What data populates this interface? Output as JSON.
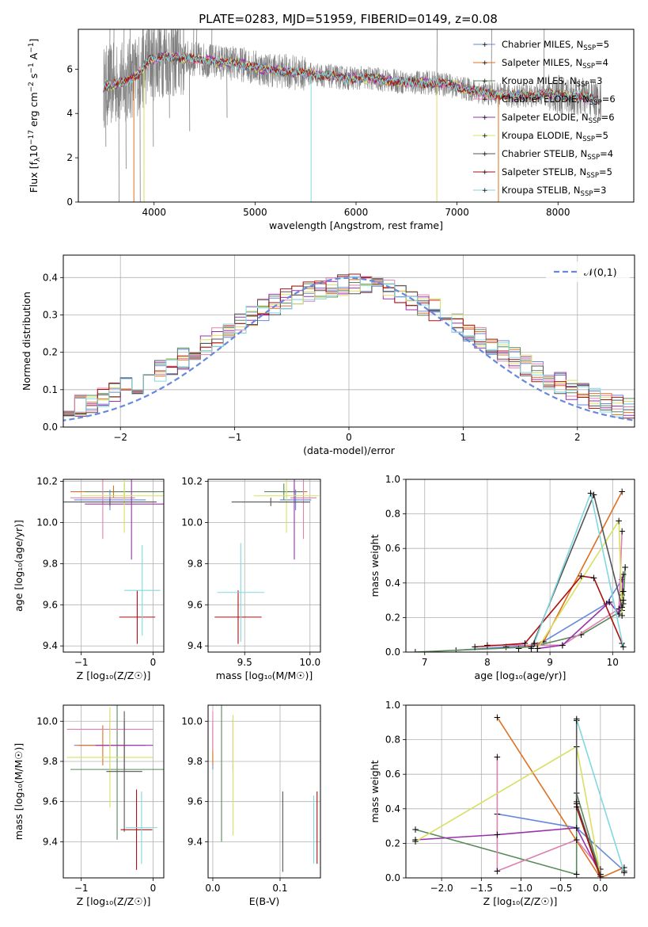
{
  "figure": {
    "title": "PLATE=0283, MJD=51959, FIBERID=0149, z=0.08",
    "colors": [
      "#6688dd",
      "#e07020",
      "#5a8a5a",
      "#e080b0",
      "#9a30b0",
      "#d8e060",
      "#555555",
      "#aa1010",
      "#80d8e0"
    ]
  },
  "chart_data": [
    {
      "id": "spectrum",
      "type": "line",
      "title": "PLATE=0283, MJD=51959, FIBERID=0149, z=0.08",
      "xlabel": "wavelength [Angstrom, rest frame]",
      "ylabel_parts": [
        "Flux [f",
        "λ",
        "10",
        "−17",
        " erg cm",
        "−2",
        " s",
        "−1",
        " A",
        "−1",
        "]"
      ],
      "xlim": [
        3250,
        8750
      ],
      "ylim": [
        0,
        7.8
      ],
      "xticks": [
        4000,
        5000,
        6000,
        7000,
        8000
      ],
      "yticks": [
        0,
        2,
        4,
        6
      ],
      "legend_position": "upper right",
      "series": [
        {
          "name": "Chabrier MILES, N",
          "sub": "SSP",
          "suffix": "=5",
          "n": 5
        },
        {
          "name": "Salpeter MILES, N",
          "sub": "SSP",
          "suffix": "=4",
          "n": 4
        },
        {
          "name": "Kroupa MILES, N",
          "sub": "SSP",
          "suffix": "=3",
          "n": 3
        },
        {
          "name": "Chabrier ELODIE, N",
          "sub": "SSP",
          "suffix": "=6",
          "n": 6
        },
        {
          "name": "Salpeter ELODIE, N",
          "sub": "SSP",
          "suffix": "=6",
          "n": 6
        },
        {
          "name": "Kroupa ELODIE, N",
          "sub": "SSP",
          "suffix": "=5",
          "n": 5
        },
        {
          "name": "Chabrier STELIB, N",
          "sub": "SSP",
          "suffix": "=4",
          "n": 4
        },
        {
          "name": "Salpeter STELIB, N",
          "sub": "SSP",
          "suffix": "=5",
          "n": 5
        },
        {
          "name": "Kroupa STELIB, N",
          "sub": "SSP",
          "suffix": "=3",
          "n": 3
        }
      ],
      "continuum": {
        "x": [
          3500,
          3700,
          3850,
          3950,
          4100,
          4300,
          4500,
          4700,
          4900,
          5100,
          5300,
          5500,
          5700,
          5900,
          6100,
          6300,
          6500,
          6700,
          6900,
          7100,
          7300,
          7500,
          7700,
          7900,
          8100,
          8300,
          8400
        ],
        "y": [
          5.2,
          5.4,
          5.8,
          6.4,
          6.6,
          6.5,
          6.4,
          6.3,
          6.2,
          6.0,
          5.9,
          5.8,
          5.7,
          5.6,
          5.6,
          5.5,
          5.4,
          5.4,
          5.3,
          5.1,
          4.9,
          4.8,
          4.8,
          4.9,
          4.8,
          4.7,
          4.6
        ]
      }
    },
    {
      "id": "residuals",
      "type": "histogram",
      "xlabel": "(data-model)/error",
      "ylabel": "Normed distribution",
      "xlim": [
        -2.5,
        2.5
      ],
      "ylim": [
        0,
        0.46
      ],
      "xticks": [
        -2,
        -1,
        0,
        1,
        2
      ],
      "yticks": [
        0.0,
        0.1,
        0.2,
        0.3,
        0.4
      ],
      "bin_width": 0.1,
      "legend_label": "𝒩(0,1)",
      "legend_position": "upper right"
    },
    {
      "id": "age-vs-Z",
      "type": "scatter",
      "xlabel": "Z [log₁₀(Z/Z☉)]",
      "ylabel": "age  [log₁₀(age/yr)]",
      "xlim": [
        -1.25,
        0.15
      ],
      "ylim": [
        9.37,
        10.21
      ],
      "xticks": [
        -1,
        0
      ],
      "yticks": [
        9.4,
        9.6,
        9.8,
        10.0,
        10.2
      ],
      "points": [
        {
          "x": -0.6,
          "y": 10.11,
          "xerr": 0.5,
          "yerr": 0.05
        },
        {
          "x": -0.55,
          "y": 10.15,
          "xerr": 0.6,
          "yerr": 0.03
        },
        {
          "x": -0.4,
          "y": 10.15,
          "xerr": 0.55,
          "yerr": 0.04
        },
        {
          "x": -0.7,
          "y": 10.12,
          "xerr": 0.45,
          "yerr": 0.2
        },
        {
          "x": -0.3,
          "y": 10.09,
          "xerr": 0.65,
          "yerr": 0.27
        },
        {
          "x": -0.4,
          "y": 10.13,
          "xerr": 0.6,
          "yerr": 0.18
        },
        {
          "x": -0.6,
          "y": 10.1,
          "xerr": 0.65,
          "yerr": 0.02
        },
        {
          "x": -0.22,
          "y": 9.54,
          "xerr": 0.25,
          "yerr": 0.13
        },
        {
          "x": -0.15,
          "y": 9.67,
          "xerr": 0.25,
          "yerr": 0.22
        }
      ]
    },
    {
      "id": "age-vs-mass",
      "type": "scatter",
      "xlabel": "mass [log₁₀(M/M☉)]",
      "ylabel": "",
      "xlim": [
        9.22,
        10.08
      ],
      "ylim": [
        9.37,
        10.21
      ],
      "xticks": [
        9.5,
        10.0
      ],
      "yticks": [
        9.4,
        9.6,
        9.8,
        10.0,
        10.2
      ],
      "points": [
        {
          "x": 9.89,
          "y": 10.11,
          "xerr": 0.12,
          "yerr": 0.05
        },
        {
          "x": 9.88,
          "y": 10.15,
          "xerr": 0.1,
          "yerr": 0.03
        },
        {
          "x": 9.8,
          "y": 10.15,
          "xerr": 0.15,
          "yerr": 0.04
        },
        {
          "x": 9.95,
          "y": 10.12,
          "xerr": 0.1,
          "yerr": 0.2
        },
        {
          "x": 9.88,
          "y": 10.1,
          "xerr": 0.12,
          "yerr": 0.28
        },
        {
          "x": 9.82,
          "y": 10.13,
          "xerr": 0.25,
          "yerr": 0.18
        },
        {
          "x": 9.7,
          "y": 10.1,
          "xerr": 0.3,
          "yerr": 0.02
        },
        {
          "x": 9.45,
          "y": 9.54,
          "xerr": 0.18,
          "yerr": 0.13
        },
        {
          "x": 9.47,
          "y": 9.66,
          "xerr": 0.18,
          "yerr": 0.24
        }
      ]
    },
    {
      "id": "massweight-vs-age",
      "type": "line",
      "xlabel": "age  [log₁₀(age/yr)]",
      "ylabel": "mass weight",
      "xlim": [
        6.7,
        10.35
      ],
      "ylim": [
        0,
        1.0
      ],
      "xticks": [
        7,
        8,
        9,
        10
      ],
      "yticks": [
        0.0,
        0.2,
        0.4,
        0.6,
        0.8,
        1.0
      ],
      "series": [
        {
          "x": [
            7.5,
            8.3,
            8.8,
            9.9,
            10.15
          ],
          "y": [
            0.01,
            0.03,
            0.04,
            0.28,
            0.42
          ]
        },
        {
          "x": [
            8.5,
            8.9,
            10.15
          ],
          "y": [
            0.02,
            0.06,
            0.93
          ]
        },
        {
          "x": [
            6.85,
            8.7,
            9.5,
            10.15,
            10.17,
            10.2
          ],
          "y": [
            0.0,
            0.03,
            0.1,
            0.24,
            0.28,
            0.49
          ]
        },
        {
          "x": [
            8.0,
            9.2,
            10.1,
            10.15
          ],
          "y": [
            0.04,
            0.04,
            0.25,
            0.7
          ]
        },
        {
          "x": [
            8.8,
            9.2,
            9.95,
            10.1,
            10.15,
            10.17
          ],
          "y": [
            0.02,
            0.04,
            0.29,
            0.22,
            0.33,
            0.45
          ]
        },
        {
          "x": [
            8.8,
            10.1,
            10.15,
            10.17
          ],
          "y": [
            0.02,
            0.76,
            0.21,
            0.35
          ]
        },
        {
          "x": [
            8.7,
            9.7,
            10.15,
            10.17
          ],
          "y": [
            0.02,
            0.91,
            0.26,
            0.3
          ]
        },
        {
          "x": [
            7.8,
            8.6,
            9.5,
            9.7,
            10.15
          ],
          "y": [
            0.03,
            0.05,
            0.44,
            0.43,
            0.05
          ]
        },
        {
          "x": [
            8.75,
            9.65,
            10.17
          ],
          "y": [
            0.05,
            0.92,
            0.03
          ]
        }
      ]
    },
    {
      "id": "mass-vs-Z",
      "type": "scatter",
      "xlabel": "Z [log₁₀(Z/Z☉)]",
      "ylabel": "mass [log₁₀(M/M☉)]",
      "xlim": [
        -1.25,
        0.15
      ],
      "ylim": [
        9.22,
        10.08
      ],
      "xticks": [
        -1,
        0
      ],
      "yticks": [
        9.4,
        9.6,
        9.8,
        10.0
      ],
      "points": [
        {
          "x": -0.6,
          "y": 9.88,
          "xerr": 0.5,
          "yerr": 0.12
        },
        {
          "x": -0.7,
          "y": 9.88,
          "xerr": 0.35,
          "yerr": 0.1
        },
        {
          "x": -0.5,
          "y": 9.76,
          "xerr": 0.65,
          "yerr": 0.35
        },
        {
          "x": -0.6,
          "y": 9.96,
          "xerr": 0.6,
          "yerr": 0.09
        },
        {
          "x": -0.4,
          "y": 9.88,
          "xerr": 0.4,
          "yerr": 0.12
        },
        {
          "x": -0.6,
          "y": 9.82,
          "xerr": 0.6,
          "yerr": 0.25
        },
        {
          "x": -0.4,
          "y": 9.75,
          "xerr": 0.25,
          "yerr": 0.3
        },
        {
          "x": -0.23,
          "y": 9.46,
          "xerr": 0.22,
          "yerr": 0.2
        },
        {
          "x": -0.16,
          "y": 9.47,
          "xerr": 0.22,
          "yerr": 0.18
        }
      ]
    },
    {
      "id": "mass-vs-EBV",
      "type": "scatter",
      "xlabel": "E(B-V)",
      "ylabel": "",
      "xlim": [
        -0.007,
        0.16
      ],
      "ylim": [
        9.22,
        10.08
      ],
      "xticks": [
        0.0,
        0.1
      ],
      "yticks": [
        9.4,
        9.6,
        9.8,
        10.0
      ],
      "points": [
        {
          "x": 0.0,
          "y": 9.88,
          "yerr": 0.12
        },
        {
          "x": 0.0,
          "y": 9.88,
          "yerr": 0.1
        },
        {
          "x": 0.013,
          "y": 9.75,
          "yerr": 0.35
        },
        {
          "x": 0.0,
          "y": 9.95,
          "yerr": 0.1
        },
        {
          "x": 0.03,
          "y": 9.88,
          "yerr": 0.13
        },
        {
          "x": 0.03,
          "y": 9.73,
          "yerr": 0.3
        },
        {
          "x": 0.104,
          "y": 9.45,
          "yerr": 0.2
        },
        {
          "x": 0.155,
          "y": 9.47,
          "yerr": 0.18
        },
        {
          "x": 0.15,
          "y": 9.46,
          "yerr": 0.17
        }
      ]
    },
    {
      "id": "massweight-vs-Z",
      "type": "line",
      "xlabel": "Z [log₁₀(Z/Z☉)]",
      "ylabel": "mass weight",
      "xlim": [
        -2.45,
        0.43
      ],
      "ylim": [
        0,
        1.0
      ],
      "xticks": [
        -2.0,
        -1.5,
        -1.0,
        -0.5,
        0.0
      ],
      "yticks": [
        0.0,
        0.2,
        0.4,
        0.6,
        0.8,
        1.0
      ],
      "series": [
        {
          "x": [
            -1.3,
            -0.3,
            0.3
          ],
          "y": [
            0.37,
            0.29,
            0.04
          ]
        },
        {
          "x": [
            -1.3,
            0.0,
            0.3
          ],
          "y": [
            0.93,
            0.0,
            0.06
          ]
        },
        {
          "x": [
            -2.33,
            -0.3,
            -0.3,
            0.0
          ],
          "y": [
            0.28,
            0.02,
            0.49,
            0.02
          ]
        },
        {
          "x": [
            -1.3,
            -1.3,
            -0.3,
            0.0
          ],
          "y": [
            0.7,
            0.04,
            0.22,
            0.05
          ]
        },
        {
          "x": [
            -2.33,
            -1.3,
            -0.3,
            0.0
          ],
          "y": [
            0.22,
            0.25,
            0.29,
            0.02
          ]
        },
        {
          "x": [
            -2.33,
            -0.3,
            0.0
          ],
          "y": [
            0.21,
            0.76,
            0.02
          ]
        },
        {
          "x": [
            -0.3,
            -0.3,
            0.0
          ],
          "y": [
            0.91,
            0.43,
            0.01
          ]
        },
        {
          "x": [
            -0.3,
            -0.3,
            0.0
          ],
          "y": [
            0.44,
            0.41,
            0.0
          ]
        },
        {
          "x": [
            -0.3,
            0.3
          ],
          "y": [
            0.92,
            0.03
          ]
        }
      ]
    }
  ]
}
